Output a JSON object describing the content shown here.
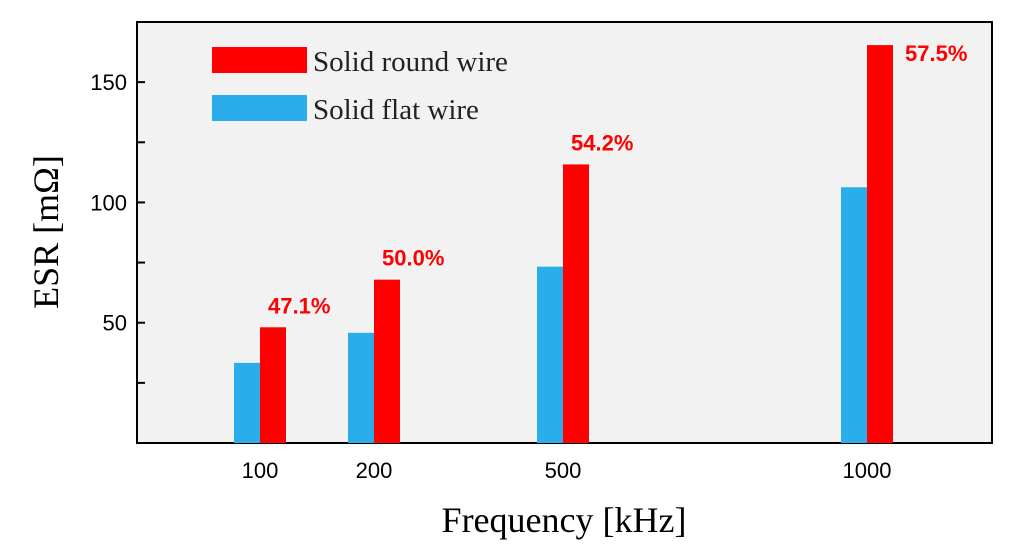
{
  "chart_data": {
    "type": "bar",
    "title": "",
    "xlabel": "Frequency [kHz]",
    "ylabel": "ESR [mΩ]",
    "categories": [
      "100",
      "200",
      "500",
      "1000"
    ],
    "ylim": [
      0,
      175
    ],
    "yticks_major": [
      50,
      100,
      150
    ],
    "yticks_minor": [
      25,
      75,
      125,
      175
    ],
    "grid": false,
    "legend_position": "top-left",
    "series": [
      {
        "name": "Solid flat wire",
        "color": "#2aaeeb",
        "values": [
          33.3,
          45.8,
          73.3,
          106.3
        ]
      },
      {
        "name": "Solid round wire",
        "color": "#fe0000",
        "values": [
          48.1,
          67.9,
          115.8,
          165.4
        ]
      }
    ],
    "legend_order": [
      "Solid round wire",
      "Solid flat wire"
    ],
    "annotations": [
      "47.1%",
      "50.0%",
      "54.2%",
      "57.5%"
    ],
    "annotation_color": "#fe0000",
    "plot_background": "#f2f2f2"
  }
}
